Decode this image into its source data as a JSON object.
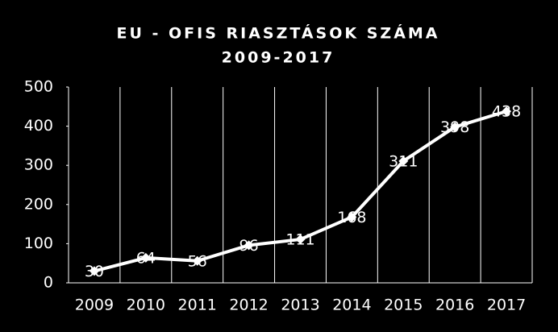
{
  "chart_data": {
    "type": "line",
    "title": "EU - OFIS RIASZTÁSOK SZÁMA",
    "subtitle": "2009-2017",
    "categories": [
      "2009",
      "2010",
      "2011",
      "2012",
      "2013",
      "2014",
      "2015",
      "2016",
      "2017"
    ],
    "values": [
      30,
      64,
      56,
      96,
      111,
      168,
      311,
      398,
      438
    ],
    "color": "#ffffff",
    "ylim": [
      0,
      500
    ],
    "yticks": [
      0,
      100,
      200,
      300,
      400,
      500
    ],
    "grid": true
  }
}
